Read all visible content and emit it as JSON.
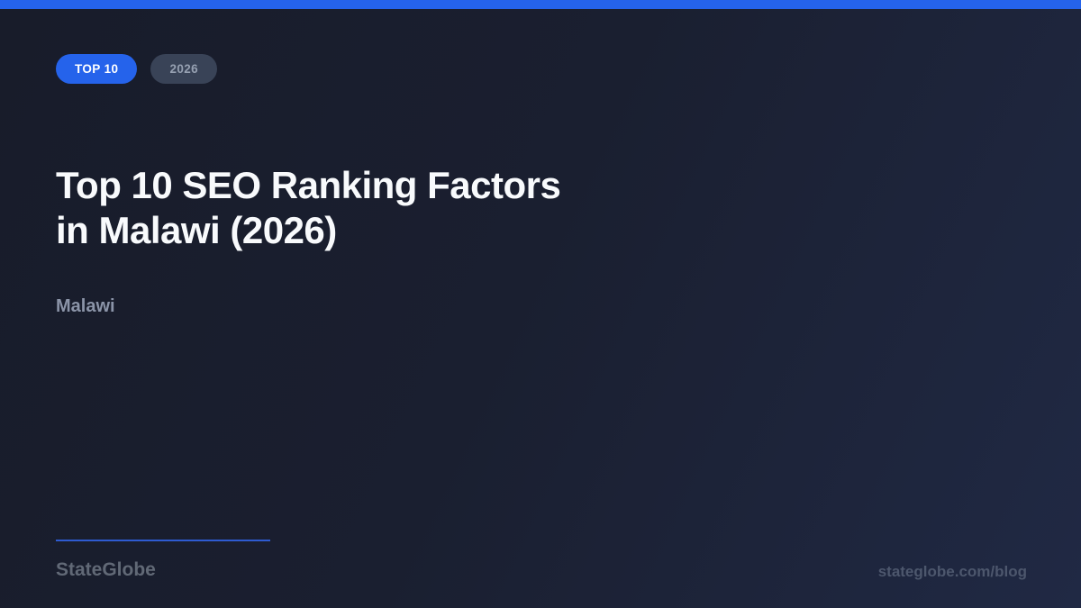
{
  "cover": {
    "badge_primary": "TOP 10",
    "badge_secondary": "2026",
    "title_line1": "Top 10 SEO Ranking Factors",
    "title_line2": "in Malawi (2026)",
    "subtitle": "Malawi",
    "brand": "StateGlobe",
    "footer_url": "stateglobe.com/blog"
  },
  "colors": {
    "accent_blue": "#2563eb",
    "divider_blue": "#2e5bd1",
    "background_dark": "#181c2a",
    "background_light": "#202944",
    "badge_secondary_bg": "#394357",
    "badge_secondary_text": "#96a0b1",
    "title_text": "#f8fafc",
    "subtitle_text": "#8b94a8",
    "brand_text": "#616976",
    "url_text": "#4d576d"
  }
}
